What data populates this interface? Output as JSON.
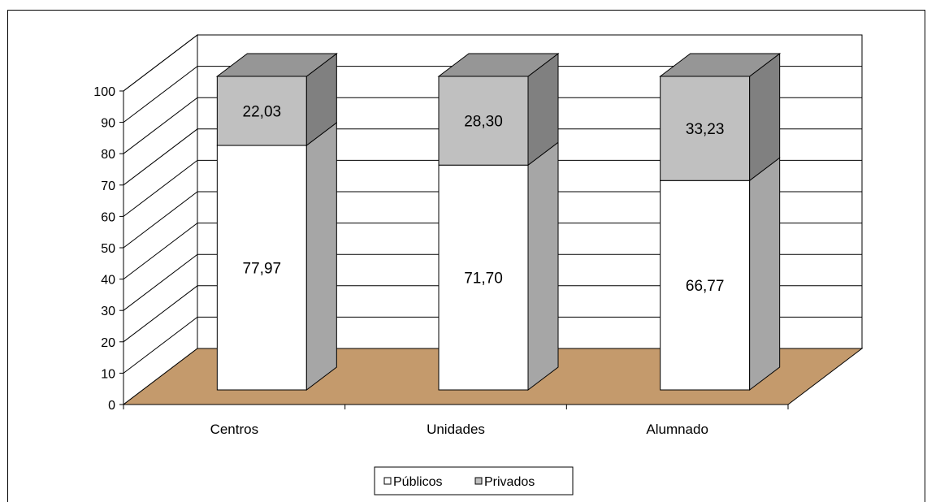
{
  "chart_data": {
    "type": "bar",
    "stacked": true,
    "three_d": true,
    "categories": [
      "Centros",
      "Unidades",
      "Alumnado"
    ],
    "series": [
      {
        "name": "Públicos",
        "values": [
          77.97,
          71.7,
          66.77
        ],
        "labels": [
          "77,97",
          "71,70",
          "66,77"
        ],
        "color": "#ffffff"
      },
      {
        "name": "Privados",
        "values": [
          22.03,
          28.3,
          33.23
        ],
        "labels": [
          "22,03",
          "28,30",
          "33,23"
        ],
        "color": "#c0c0c0"
      }
    ],
    "title": "",
    "xlabel": "",
    "ylabel": "",
    "ylim": [
      0,
      100
    ],
    "yticks": [
      "0",
      "10",
      "20",
      "30",
      "40",
      "50",
      "60",
      "70",
      "80",
      "90",
      "100"
    ],
    "grid": true,
    "legend_position": "bottom",
    "colors": {
      "floor": "#c49a6c",
      "side_publicos": "#a6a6a6",
      "side_privados": "#808080",
      "top_privados": "#969696",
      "wall": "#ffffff"
    }
  }
}
